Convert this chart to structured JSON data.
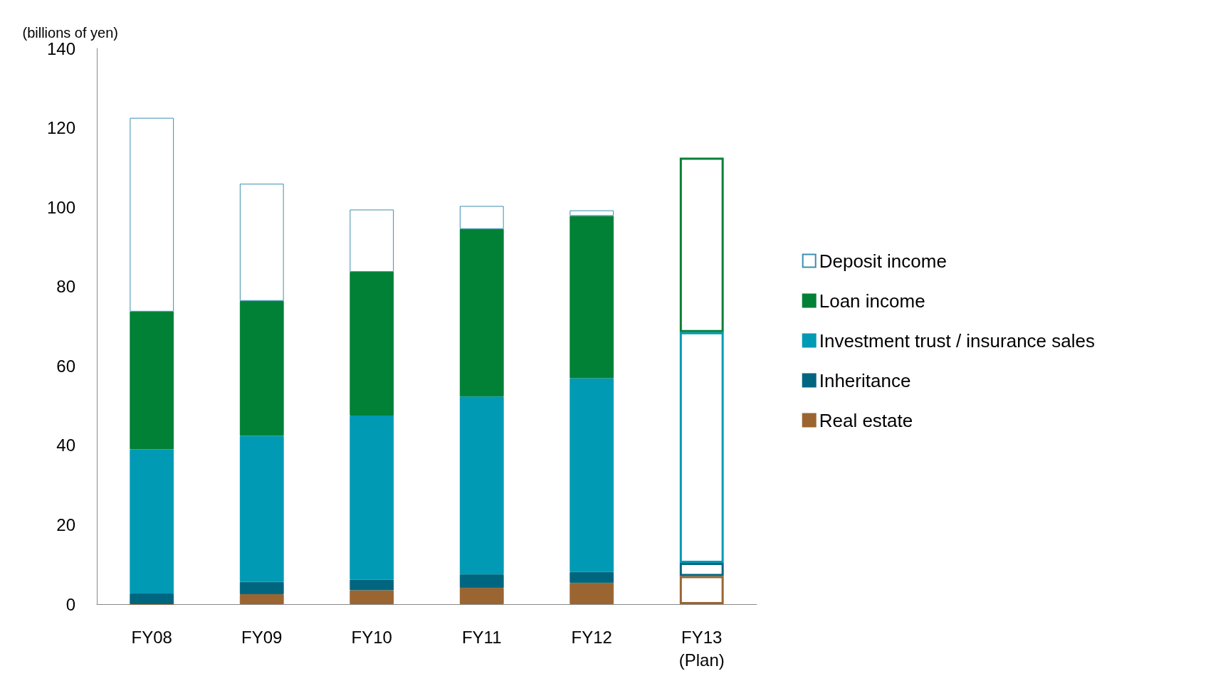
{
  "chart_data": {
    "type": "bar",
    "stacked": true,
    "ylabel": "(billions of yen)",
    "categories": [
      "FY08",
      "FY09",
      "FY10",
      "FY11",
      "FY12",
      "FY13\n(Plan)"
    ],
    "series": [
      {
        "name": "Real estate",
        "color": "#9b6531",
        "colors": [
          "#9b6531",
          "#9b6531",
          "#9b6531",
          "#9b6531",
          "#9b6531",
          "#ffffff"
        ],
        "values": [
          0,
          2.5,
          3.5,
          4.1,
          5.4,
          7.1
        ]
      },
      {
        "name": "Inheritance",
        "color": "#006680",
        "colors": [
          "#006680",
          "#006680",
          "#006680",
          "#006680",
          "#006680",
          "#ffffff"
        ],
        "values": [
          2.7,
          3.1,
          2.7,
          3.4,
          2.7,
          3.3
        ]
      },
      {
        "name": "Investment trust / insurance sales",
        "color": "#009ab5",
        "colors": [
          "#009ab5",
          "#009ab5",
          "#009ab5",
          "#009ab5",
          "#009ab5",
          "#ffffff"
        ],
        "values": [
          36.3,
          36.8,
          41.3,
          44.8,
          48.8,
          58.1
        ]
      },
      {
        "name": "Loan income",
        "color": "#008136",
        "colors": [
          "#008136",
          "#008136",
          "#008136",
          "#008136",
          "#008136",
          "#ffffff"
        ],
        "values": [
          34.7,
          34.0,
          36.2,
          42.2,
          40.9,
          44.0
        ]
      },
      {
        "name": "Deposit income",
        "color": "#ffffff",
        "values": [
          48.8,
          29.5,
          15.7,
          5.8,
          1.4,
          null
        ]
      }
    ],
    "ylim": [
      0,
      140
    ],
    "yticks": [
      0,
      20,
      40,
      60,
      80,
      100,
      120,
      140
    ],
    "grid": false,
    "legend": "right"
  }
}
